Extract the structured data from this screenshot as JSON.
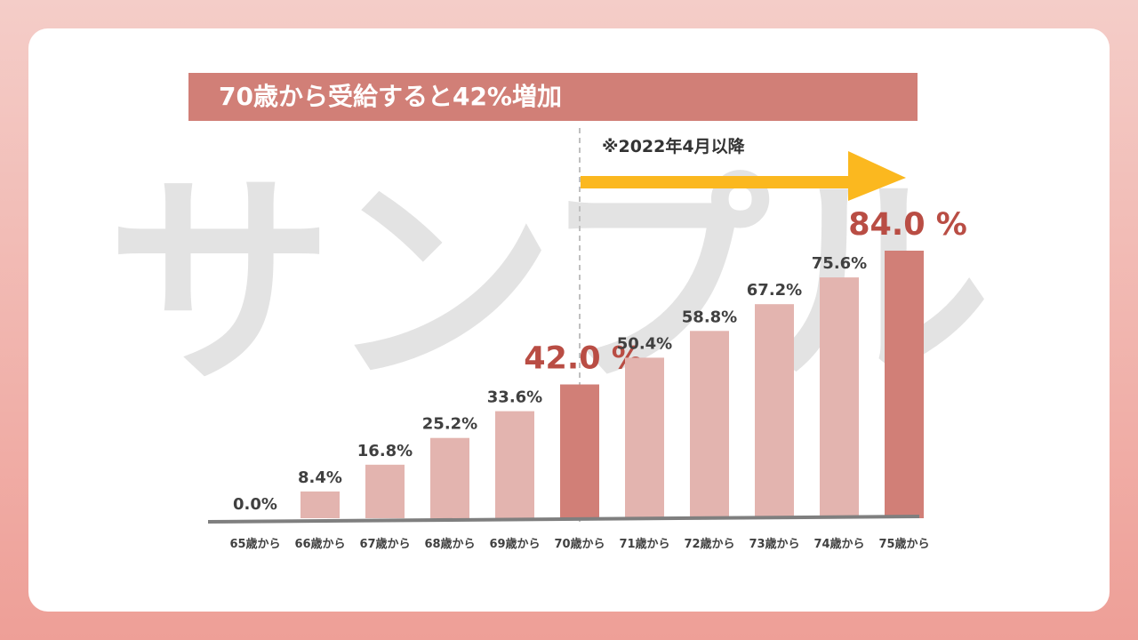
{
  "title": "70歳から受給すると42%増加",
  "note": "※2022年4月以降",
  "watermark": "サンプル",
  "colors": {
    "background_top": "#f4cdc8",
    "background_bottom": "#ee9f97",
    "title_bar": "#d17f77",
    "bar_light": "#e3b4af",
    "bar_dark": "#d17f77",
    "highlight_label": "#b94d44",
    "arrow": "#fbb81f",
    "axis": "#7f7f7f",
    "label": "#404040"
  },
  "chart_data": {
    "type": "bar",
    "categories": [
      "65歳から",
      "66歳から",
      "67歳から",
      "68歳から",
      "69歳から",
      "70歳から",
      "71歳から",
      "72歳から",
      "73歳から",
      "74歳から",
      "75歳から"
    ],
    "values": [
      0.0,
      8.4,
      16.8,
      25.2,
      33.6,
      42.0,
      50.4,
      58.8,
      67.2,
      75.6,
      84.0
    ],
    "value_labels": [
      "0.0%",
      "8.4%",
      "16.8%",
      "25.2%",
      "33.6%",
      "42.0 %",
      "50.4%",
      "58.8%",
      "67.2%",
      "75.6%",
      "84.0 %"
    ],
    "highlighted": [
      "70歳から",
      "75歳から"
    ],
    "ylim": [
      0,
      84
    ],
    "grid": false,
    "xlabel": "",
    "ylabel": ""
  }
}
